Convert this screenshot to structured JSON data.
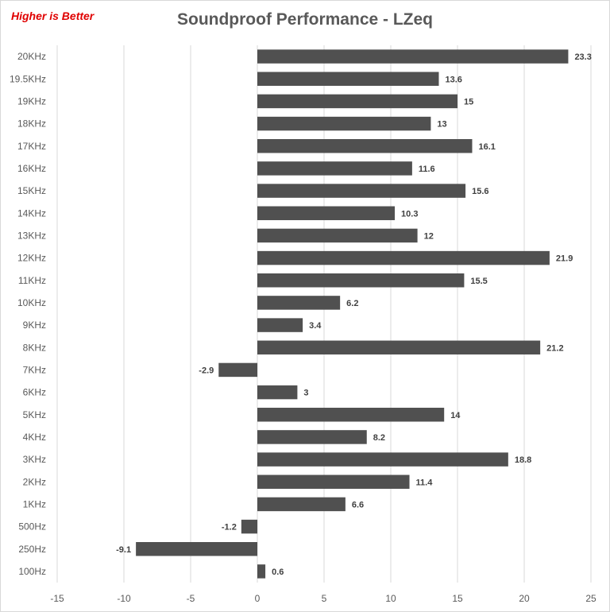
{
  "chart_data": {
    "type": "bar",
    "orientation": "horizontal",
    "title": "Soundproof Performance - LZeq",
    "annotation": "Higher is Better",
    "categories": [
      "20KHz",
      "19.5KHz",
      "19KHz",
      "18KHz",
      "17KHz",
      "16KHz",
      "15KHz",
      "14KHz",
      "13KHz",
      "12KHz",
      "11KHz",
      "10KHz",
      "9KHz",
      "8KHz",
      "7KHz",
      "6KHz",
      "5KHz",
      "4KHz",
      "3KHz",
      "2KHz",
      "1KHz",
      "500Hz",
      "250Hz",
      "100Hz"
    ],
    "values": [
      23.3,
      13.6,
      15,
      13,
      16.1,
      11.6,
      15.6,
      10.3,
      12,
      21.9,
      15.5,
      6.2,
      3.4,
      21.2,
      -2.9,
      3,
      14,
      8.2,
      18.8,
      11.4,
      6.6,
      -1.2,
      -9.1,
      0.6
    ],
    "labels": [
      "23.3",
      "13.6",
      "15",
      "13",
      "16.1",
      "11.6",
      "15.6",
      "10.3",
      "12",
      "21.9",
      "15.5",
      "6.2",
      "3.4",
      "21.2",
      "-2.9",
      "3",
      "14",
      "8.2",
      "18.8",
      "11.4",
      "6.6",
      "-1.2",
      "-9.1",
      "0.6"
    ],
    "xlim": [
      -15,
      25
    ],
    "xticks": [
      "-15",
      "-10",
      "-5",
      "0",
      "5",
      "10",
      "15",
      "20",
      "25"
    ],
    "xlabel": "",
    "ylabel": "",
    "grid": true,
    "legend": "none",
    "colors": {
      "bar": "#505050",
      "grid": "#d9d9d9",
      "text": "#595959",
      "note": "#e00000"
    }
  }
}
